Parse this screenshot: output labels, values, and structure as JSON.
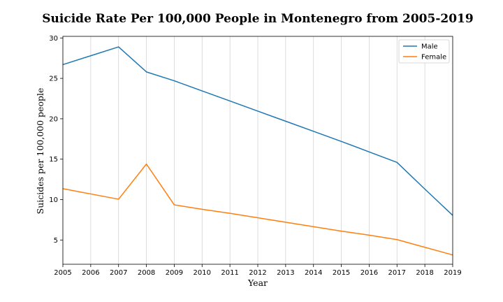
{
  "chart_data": {
    "type": "line",
    "title": "Suicide Rate Per 100,000 People in Montenegro from 2005-2019",
    "xlabel": "Year",
    "ylabel": "Suicides per 100,000 people",
    "x": [
      2005,
      2006,
      2007,
      2008,
      2009,
      2010,
      2011,
      2012,
      2013,
      2014,
      2015,
      2016,
      2017,
      2018,
      2019
    ],
    "xlim": [
      2005,
      2019
    ],
    "ylim": [
      2.0,
      30.2
    ],
    "yticks": [
      5,
      10,
      15,
      20,
      25,
      30
    ],
    "grid": "vertical",
    "legend_position": "top-right",
    "series": [
      {
        "name": "Male",
        "color": "#1f77b4",
        "values": [
          26.7,
          27.8,
          28.9,
          25.8,
          24.7,
          23.45,
          22.2,
          20.95,
          19.7,
          18.45,
          17.2,
          15.9,
          14.6,
          11.3,
          8.05
        ]
      },
      {
        "name": "Female",
        "color": "#ff7f0e",
        "values": [
          11.35,
          10.7,
          10.05,
          14.4,
          9.35,
          8.8,
          8.3,
          7.75,
          7.2,
          6.65,
          6.1,
          5.6,
          5.05,
          4.1,
          3.15
        ]
      }
    ]
  }
}
